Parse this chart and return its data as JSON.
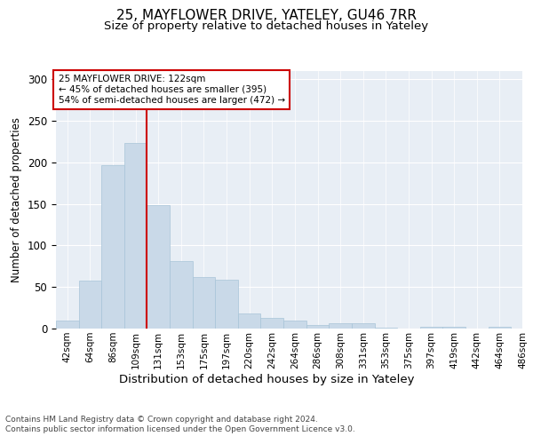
{
  "title1": "25, MAYFLOWER DRIVE, YATELEY, GU46 7RR",
  "title2": "Size of property relative to detached houses in Yateley",
  "xlabel": "Distribution of detached houses by size in Yateley",
  "ylabel": "Number of detached properties",
  "bar_values": [
    10,
    58,
    197,
    223,
    149,
    81,
    62,
    59,
    18,
    13,
    10,
    4,
    6,
    6,
    1,
    0,
    2,
    2,
    0,
    2
  ],
  "bar_labels": [
    "42sqm",
    "64sqm",
    "86sqm",
    "109sqm",
    "131sqm",
    "153sqm",
    "175sqm",
    "197sqm",
    "220sqm",
    "242sqm",
    "264sqm",
    "286sqm",
    "308sqm",
    "331sqm",
    "353sqm",
    "375sqm",
    "397sqm",
    "419sqm",
    "442sqm",
    "464sqm",
    "486sqm"
  ],
  "bar_color": "#c9d9e8",
  "bar_edge_color": "#a8c4d8",
  "vline_x": 3.5,
  "vline_color": "#cc0000",
  "annotation_text": "25 MAYFLOWER DRIVE: 122sqm\n← 45% of detached houses are smaller (395)\n54% of semi-detached houses are larger (472) →",
  "annotation_box_color": "#ffffff",
  "annotation_box_edge": "#cc0000",
  "ylim": [
    0,
    310
  ],
  "yticks": [
    0,
    50,
    100,
    150,
    200,
    250,
    300
  ],
  "footer1": "Contains HM Land Registry data © Crown copyright and database right 2024.",
  "footer2": "Contains public sector information licensed under the Open Government Licence v3.0.",
  "bg_color": "#e8eef5",
  "fig_bg_color": "#ffffff",
  "title1_fontsize": 11,
  "title2_fontsize": 9.5,
  "tick_label_fontsize": 7.5,
  "ylabel_fontsize": 8.5,
  "xlabel_fontsize": 9.5,
  "footer_fontsize": 6.5
}
